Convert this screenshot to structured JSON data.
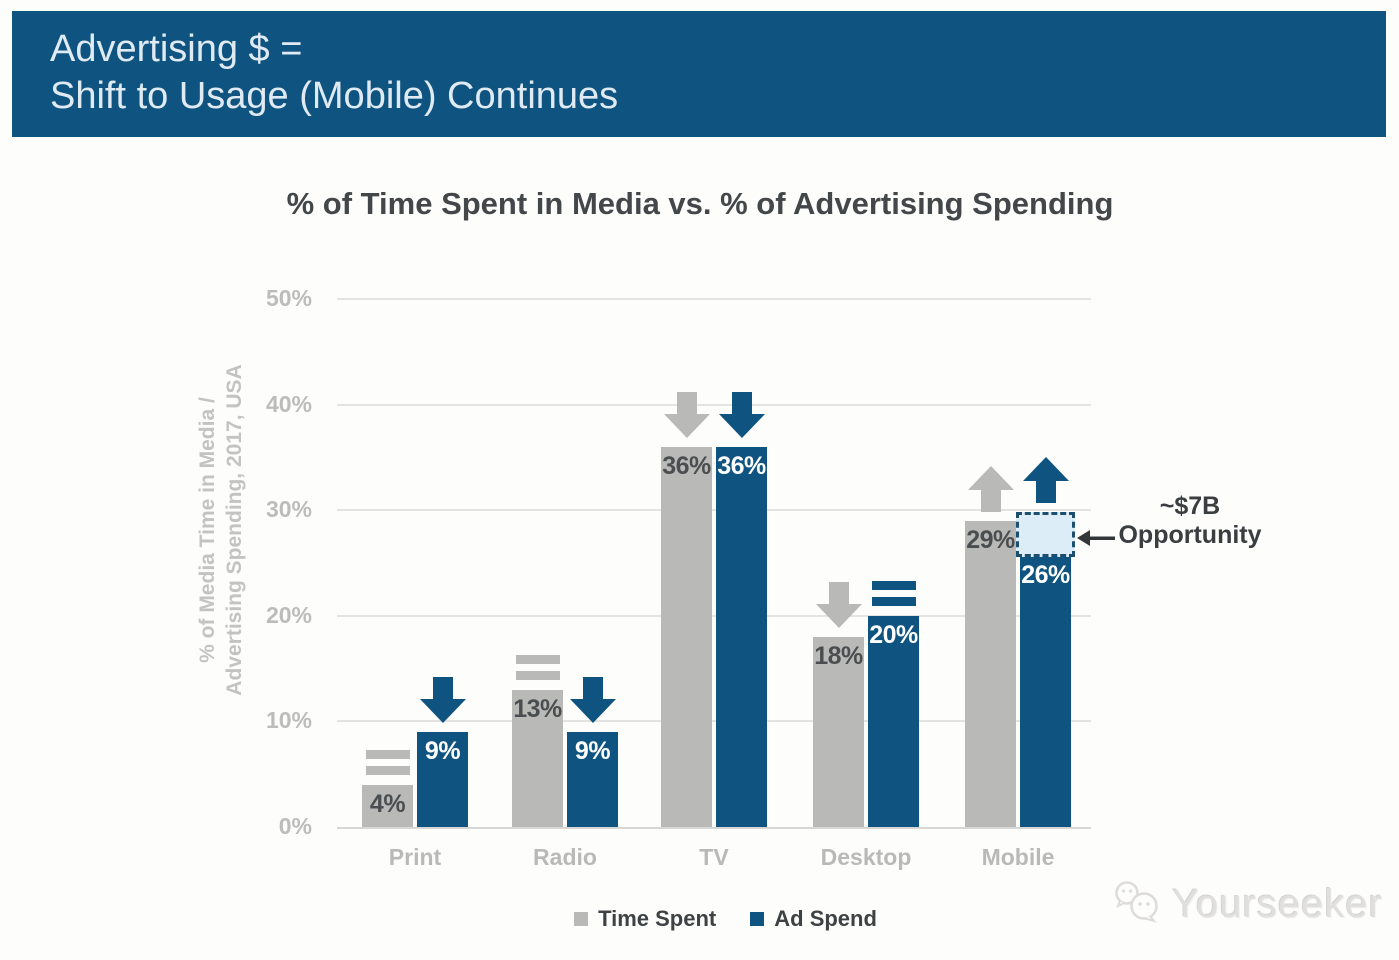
{
  "header": {
    "line1": "Advertising $ =",
    "line2": "Shift to Usage (Mobile) Continues"
  },
  "chart_data": {
    "type": "bar",
    "title": "% of Time Spent in Media vs. % of Advertising Spending",
    "ylabel_line1": "% of Media Time in Media /",
    "ylabel_line2": "Advertising Spending, 2017, USA",
    "categories": [
      "Print",
      "Radio",
      "TV",
      "Desktop",
      "Mobile"
    ],
    "series": [
      {
        "name": "Time Spent",
        "color": "#b9bab7",
        "label_color": "#4b4e50",
        "values": [
          4,
          13,
          36,
          18,
          29
        ],
        "labels": [
          "4%",
          "13%",
          "36%",
          "18%",
          "29%"
        ],
        "trend_markers": [
          "flat",
          "flat",
          "down",
          "down",
          "up"
        ]
      },
      {
        "name": "Ad Spend",
        "color": "#0f5480",
        "label_color": "#ffffff",
        "values": [
          9,
          9,
          36,
          20,
          26
        ],
        "labels": [
          "9%",
          "9%",
          "36%",
          "20%",
          "26%"
        ],
        "trend_markers": [
          "down",
          "down",
          "down",
          "flat",
          "up"
        ]
      }
    ],
    "ylim": [
      0,
      50
    ],
    "ytick_labels": [
      "0%",
      "10%",
      "20%",
      "30%",
      "40%",
      "50%"
    ],
    "grid": true,
    "legend_position": "bottom",
    "annotation": {
      "text_line1": "~$7B",
      "text_line2": "Opportunity",
      "category": "Mobile",
      "series": "Ad Spend",
      "gap_from": 26,
      "gap_to": 29,
      "box_fill": "#dcedf8",
      "box_border": "#1c4e70",
      "arrow_color": "#333639"
    }
  },
  "watermark": {
    "text": "Yourseeker"
  }
}
